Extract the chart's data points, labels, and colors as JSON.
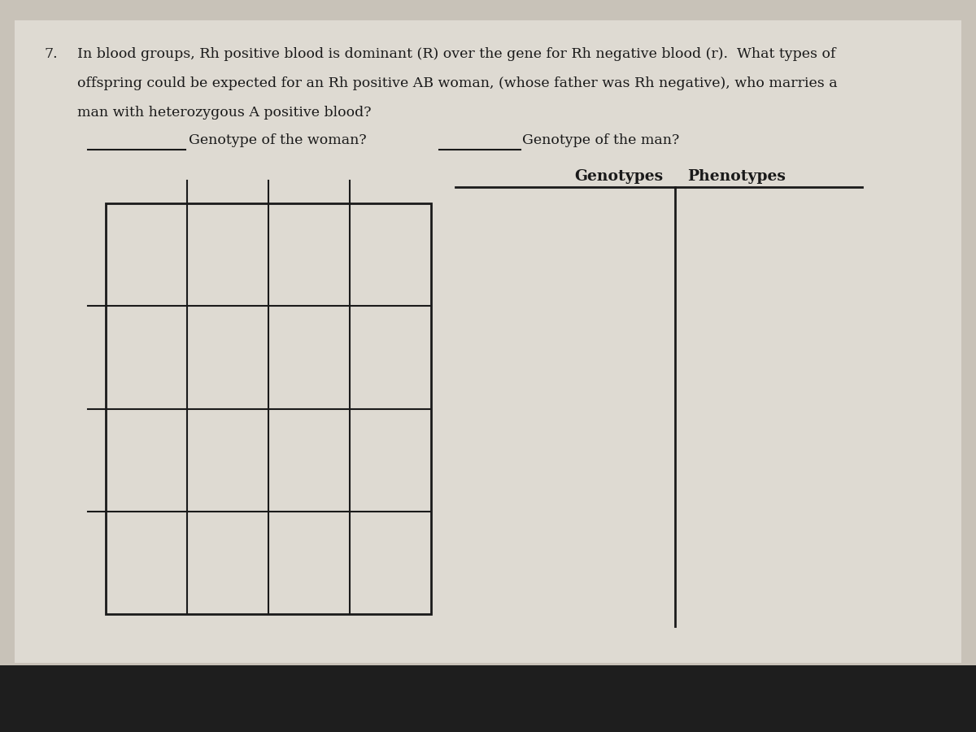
{
  "background_color": "#c8c2b8",
  "paper_color": "#dedad2",
  "bottom_bar_color": "#1e1e1e",
  "question_number": "7.",
  "question_text_line1": "In blood groups, Rh positive blood is dominant (R) over the gene for Rh negative blood (r).  What types of",
  "question_text_line2": "offspring could be expected for an Rh positive AB woman, (whose father was Rh negative), who marries a",
  "question_text_line3": "man with heterozygous A positive blood?",
  "genotype_woman_label": "Genotype of the woman?",
  "genotype_man_label": "Genotype of the man?",
  "genotypes_label": "Genotypes",
  "phenotypes_label": "Phenotypes",
  "grid_rows": 4,
  "grid_cols": 4,
  "font_size_question": 12.5,
  "font_size_labels": 12.5,
  "font_size_genopheno": 13.5,
  "line_color": "#1a1a1a",
  "text_color": "#1a1a1a"
}
